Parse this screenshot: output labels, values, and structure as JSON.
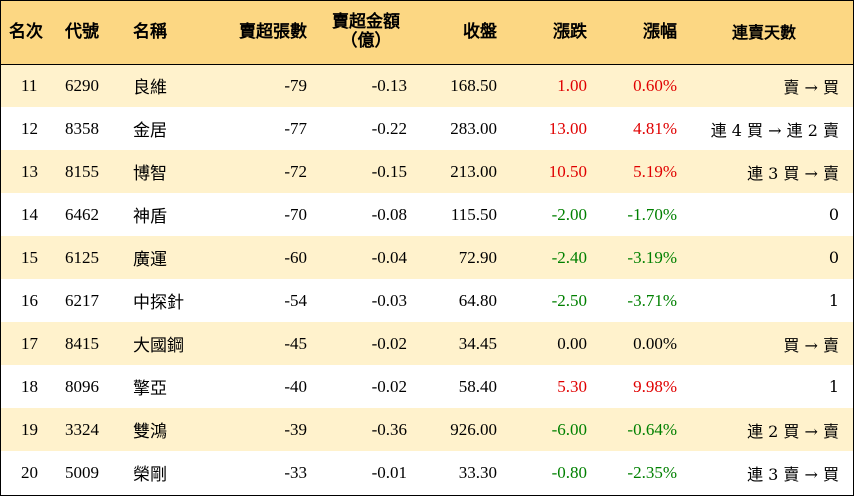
{
  "header": {
    "rank": "名次",
    "code": "代號",
    "name": "名稱",
    "sell_lots": "賣超張數",
    "sell_amount_line1": "賣超金額",
    "sell_amount_line2": "（億）",
    "close": "收盤",
    "change": "漲跌",
    "pct": "漲幅",
    "days": "連賣天數"
  },
  "colors": {
    "header_bg": "#fcd783",
    "stripe_bg": "#fff2cc",
    "up": "#e00000",
    "down": "#008000"
  },
  "rows": [
    {
      "rank": "11",
      "code": "6290",
      "name": "良維",
      "lots": "-79",
      "amount": "-0.13",
      "close": "168.50",
      "change": "1.00",
      "pct": "0.60%",
      "dir": "up",
      "days": "賣 → 買"
    },
    {
      "rank": "12",
      "code": "8358",
      "name": "金居",
      "lots": "-77",
      "amount": "-0.22",
      "close": "283.00",
      "change": "13.00",
      "pct": "4.81%",
      "dir": "up",
      "days": "連 4 買 → 連 2 賣"
    },
    {
      "rank": "13",
      "code": "8155",
      "name": "博智",
      "lots": "-72",
      "amount": "-0.15",
      "close": "213.00",
      "change": "10.50",
      "pct": "5.19%",
      "dir": "up",
      "days": "連 3 買 → 賣"
    },
    {
      "rank": "14",
      "code": "6462",
      "name": "神盾",
      "lots": "-70",
      "amount": "-0.08",
      "close": "115.50",
      "change": "-2.00",
      "pct": "-1.70%",
      "dir": "down",
      "days": "0"
    },
    {
      "rank": "15",
      "code": "6125",
      "name": "廣運",
      "lots": "-60",
      "amount": "-0.04",
      "close": "72.90",
      "change": "-2.40",
      "pct": "-3.19%",
      "dir": "down",
      "days": "0"
    },
    {
      "rank": "16",
      "code": "6217",
      "name": "中探針",
      "lots": "-54",
      "amount": "-0.03",
      "close": "64.80",
      "change": "-2.50",
      "pct": "-3.71%",
      "dir": "down",
      "days": "1"
    },
    {
      "rank": "17",
      "code": "8415",
      "name": "大國鋼",
      "lots": "-45",
      "amount": "-0.02",
      "close": "34.45",
      "change": "0.00",
      "pct": "0.00%",
      "dir": "flat",
      "days": "買 → 賣"
    },
    {
      "rank": "18",
      "code": "8096",
      "name": "擎亞",
      "lots": "-40",
      "amount": "-0.02",
      "close": "58.40",
      "change": "5.30",
      "pct": "9.98%",
      "dir": "up",
      "days": "1"
    },
    {
      "rank": "19",
      "code": "3324",
      "name": "雙鴻",
      "lots": "-39",
      "amount": "-0.36",
      "close": "926.00",
      "change": "-6.00",
      "pct": "-0.64%",
      "dir": "down",
      "days": "連 2 買 → 賣"
    },
    {
      "rank": "20",
      "code": "5009",
      "name": "榮剛",
      "lots": "-33",
      "amount": "-0.01",
      "close": "33.30",
      "change": "-0.80",
      "pct": "-2.35%",
      "dir": "down",
      "days": "連 3 賣 → 買"
    }
  ]
}
